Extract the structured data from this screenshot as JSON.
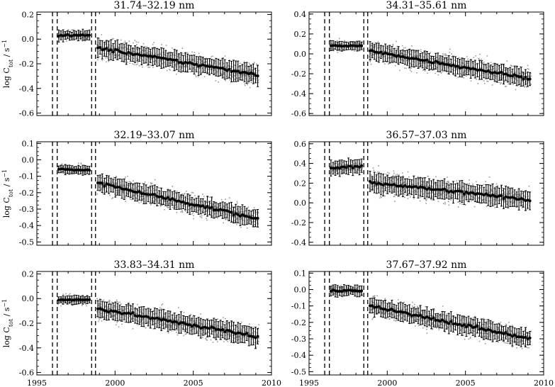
{
  "figure": {
    "ylabel": "log C",
    "ylabel_sub": "tot",
    "ylabel_unit": " / s",
    "ylabel_sup": "−1"
  },
  "chart_data": [
    {
      "type": "scatter",
      "title": "31.74–32.19 nm",
      "xlim": [
        1995,
        2010
      ],
      "ylim": [
        -0.62,
        0.22
      ],
      "xticks": [
        "1995",
        "2000",
        "2005",
        "2010"
      ],
      "yticks": [
        -0.6,
        -0.4,
        -0.2,
        0.0,
        0.2
      ],
      "ytick_labels": [
        "-0.6",
        "-0.4",
        "-0.2",
        "0.0",
        "0.2"
      ],
      "dashed_lines_x": [
        1996.0,
        1996.3,
        1998.5,
        1998.75
      ],
      "segments": [
        {
          "x_start": 1996.35,
          "x_end": 1998.4,
          "y_start": 0.03,
          "y_end": 0.03,
          "err": 0.04
        },
        {
          "x_start": 1998.85,
          "x_end": 2009.2,
          "y_start": -0.07,
          "y_end": -0.29,
          "err": 0.07
        }
      ],
      "points_spread": 0.09
    },
    {
      "type": "scatter",
      "title": "34.31–35.61 nm",
      "xlim": [
        1995,
        2010
      ],
      "ylim": [
        -0.62,
        0.42
      ],
      "xticks": [
        "1995",
        "2000",
        "2005",
        "2010"
      ],
      "yticks": [
        -0.6,
        -0.4,
        -0.2,
        0.0,
        0.2,
        0.4
      ],
      "ytick_labels": [
        "-0.6",
        "-0.4",
        "-0.2",
        "0.0",
        "0.2",
        "0.4"
      ],
      "dashed_lines_x": [
        1996.0,
        1996.3,
        1998.5,
        1998.75
      ],
      "segments": [
        {
          "x_start": 1996.35,
          "x_end": 1998.4,
          "y_start": 0.08,
          "y_end": 0.08,
          "err": 0.04
        },
        {
          "x_start": 1998.85,
          "x_end": 2009.2,
          "y_start": 0.03,
          "y_end": -0.25,
          "err": 0.08
        }
      ],
      "points_spread": 0.11
    },
    {
      "type": "scatter",
      "title": "32.19–33.07 nm",
      "xlim": [
        1995,
        2010
      ],
      "ylim": [
        -0.52,
        0.11
      ],
      "xticks": [
        "1995",
        "2000",
        "2005",
        "2010"
      ],
      "yticks": [
        -0.5,
        -0.4,
        -0.3,
        -0.2,
        -0.1,
        0.0,
        0.1
      ],
      "ytick_labels": [
        "-0.5",
        "-0.4",
        "-0.3",
        "-0.2",
        "-0.1",
        "0.0",
        "0.1"
      ],
      "dashed_lines_x": [
        1996.0,
        1996.3,
        1998.5,
        1998.75
      ],
      "segments": [
        {
          "x_start": 1996.35,
          "x_end": 1998.4,
          "y_start": -0.055,
          "y_end": -0.065,
          "err": 0.025
        },
        {
          "x_start": 1998.85,
          "x_end": 2009.2,
          "y_start": -0.14,
          "y_end": -0.36,
          "err": 0.05
        }
      ],
      "points_spread": 0.065
    },
    {
      "type": "scatter",
      "title": "36.57–37.03 nm",
      "xlim": [
        1995,
        2010
      ],
      "ylim": [
        -0.43,
        0.62
      ],
      "xticks": [
        "1995",
        "2000",
        "2005",
        "2010"
      ],
      "yticks": [
        -0.4,
        -0.2,
        0.0,
        0.2,
        0.4,
        0.6
      ],
      "ytick_labels": [
        "-0.4",
        "-0.2",
        "0.0",
        "0.2",
        "0.4",
        "0.6"
      ],
      "dashed_lines_x": [
        1996.0,
        1996.3,
        1998.5,
        1998.75
      ],
      "segments": [
        {
          "x_start": 1996.35,
          "x_end": 1998.4,
          "y_start": 0.35,
          "y_end": 0.37,
          "err": 0.07
        },
        {
          "x_start": 1998.85,
          "x_end": 2009.2,
          "y_start": 0.21,
          "y_end": 0.03,
          "err": 0.09
        }
      ],
      "points_spread": 0.12
    },
    {
      "type": "scatter",
      "title": "33.83–34.31 nm",
      "xlim": [
        1995,
        2010
      ],
      "ylim": [
        -0.62,
        0.22
      ],
      "xticks": [
        "1995",
        "2000",
        "2005",
        "2010"
      ],
      "yticks": [
        -0.6,
        -0.4,
        -0.2,
        0.0,
        0.2
      ],
      "ytick_labels": [
        "-0.6",
        "-0.4",
        "-0.2",
        "0.0",
        "0.2"
      ],
      "dashed_lines_x": [
        1996.0,
        1996.3,
        1998.5,
        1998.75
      ],
      "segments": [
        {
          "x_start": 1996.35,
          "x_end": 1998.4,
          "y_start": -0.01,
          "y_end": -0.01,
          "err": 0.03
        },
        {
          "x_start": 1998.85,
          "x_end": 2009.2,
          "y_start": -0.08,
          "y_end": -0.31,
          "err": 0.07
        }
      ],
      "points_spread": 0.09
    },
    {
      "type": "scatter",
      "title": "37.67–37.92 nm",
      "xlim": [
        1995,
        2010
      ],
      "ylim": [
        -0.52,
        0.11
      ],
      "xticks": [
        "1995",
        "2000",
        "2005",
        "2010"
      ],
      "yticks": [
        -0.5,
        -0.4,
        -0.3,
        -0.2,
        -0.1,
        0.0,
        0.1
      ],
      "ytick_labels": [
        "-0.5",
        "-0.4",
        "-0.3",
        "-0.2",
        "-0.1",
        "0.0",
        "0.1"
      ],
      "dashed_lines_x": [
        1996.0,
        1996.3,
        1998.5,
        1998.75
      ],
      "segments": [
        {
          "x_start": 1996.35,
          "x_end": 1998.4,
          "y_start": -0.005,
          "y_end": -0.01,
          "err": 0.03
        },
        {
          "x_start": 1998.85,
          "x_end": 2009.2,
          "y_start": -0.1,
          "y_end": -0.3,
          "err": 0.05
        }
      ],
      "points_spread": 0.065
    }
  ]
}
